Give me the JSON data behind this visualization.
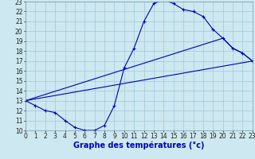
{
  "xlabel": "Graphe des températures (°c)",
  "xlim": [
    0,
    23
  ],
  "ylim": [
    10,
    23
  ],
  "xticks": [
    0,
    1,
    2,
    3,
    4,
    5,
    6,
    7,
    8,
    9,
    10,
    11,
    12,
    13,
    14,
    15,
    16,
    17,
    18,
    19,
    20,
    21,
    22,
    23
  ],
  "yticks": [
    10,
    11,
    12,
    13,
    14,
    15,
    16,
    17,
    18,
    19,
    20,
    21,
    22,
    23
  ],
  "bg_color": "#cde8f0",
  "line_color": "#0000bb",
  "grid_color": "#a0c8d8",
  "line1_x": [
    0,
    1,
    2,
    3,
    4,
    5,
    6,
    7,
    8,
    9,
    10,
    11,
    12,
    13,
    14,
    15,
    16,
    17,
    18,
    19,
    20,
    21,
    22,
    23
  ],
  "line1_y": [
    13.0,
    12.5,
    12.0,
    11.8,
    11.0,
    10.3,
    10.0,
    10.0,
    10.5,
    12.5,
    16.3,
    18.3,
    21.0,
    22.8,
    23.2,
    22.8,
    22.2,
    22.0,
    21.5,
    20.2,
    19.3,
    18.3,
    17.8,
    17.0
  ],
  "line2_x": [
    0,
    23
  ],
  "line2_y": [
    13.0,
    17.0
  ],
  "line3_x": [
    0,
    20,
    21,
    22,
    23
  ],
  "line3_y": [
    13.0,
    19.3,
    18.3,
    17.8,
    17.0
  ],
  "tick_fontsize": 5.5,
  "label_fontsize": 7.0,
  "figsize": [
    3.2,
    2.0
  ],
  "dpi": 100
}
